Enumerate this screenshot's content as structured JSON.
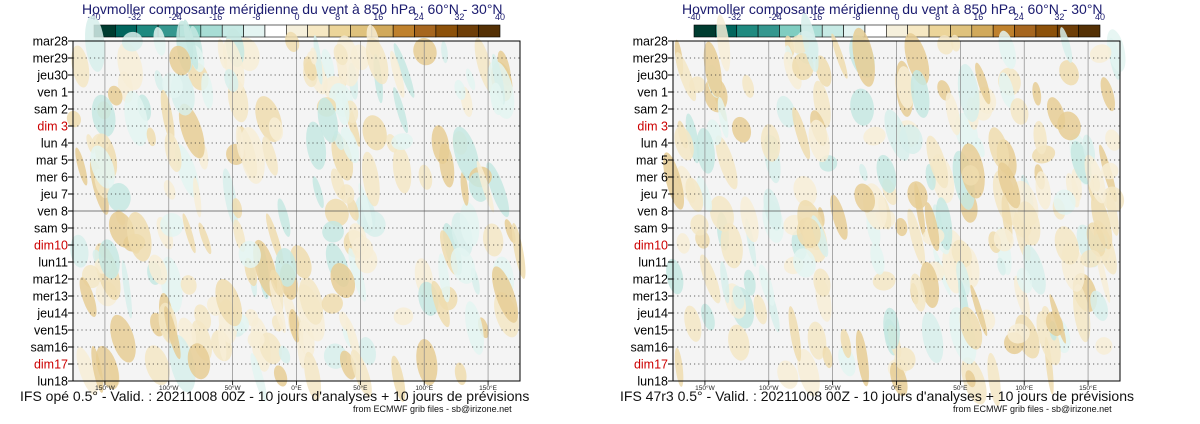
{
  "chart_data": [
    {
      "type": "heatmap",
      "title": "Hovmoller composante méridienne du vent à 850 hPa : 60°N - 30°N",
      "footer": "IFS opé 0.5° - Valid. : 20211008 00Z - 10 jours d'analyses + 10 jours de prévisions",
      "credit": "from ECMWF grib files - sb@irizone.net",
      "colorbar": {
        "ticks": [
          "-40",
          "-32",
          "-24",
          "-16",
          "-8",
          "0",
          "8",
          "16",
          "24",
          "32",
          "40"
        ],
        "colors": [
          "#003c30",
          "#01665e",
          "#1f8a80",
          "#35978f",
          "#80cdc1",
          "#a8ddd5",
          "#c7eae5",
          "#e4f4f2",
          "#ffffff",
          "#f6f0dc",
          "#f6e8c3",
          "#ecd59a",
          "#dfc27d",
          "#d1a95b",
          "#bf812d",
          "#a6661f",
          "#8c510a",
          "#6e3e08",
          "#543005"
        ]
      },
      "x_ticks": [
        "150°W",
        "100°W",
        "50°W",
        "0°E",
        "50°E",
        "100°E",
        "150°E"
      ],
      "y_labels": [
        {
          "text": "mar28",
          "weekend": false
        },
        {
          "text": "mer29",
          "weekend": false
        },
        {
          "text": "jeu30",
          "weekend": false
        },
        {
          "text": "ven 1",
          "weekend": false
        },
        {
          "text": "sam 2",
          "weekend": false
        },
        {
          "text": "dim 3",
          "weekend": true
        },
        {
          "text": "lun 4",
          "weekend": false
        },
        {
          "text": "mar 5",
          "weekend": false
        },
        {
          "text": "mer 6",
          "weekend": false
        },
        {
          "text": "jeu 7",
          "weekend": false
        },
        {
          "text": "ven 8",
          "weekend": false
        },
        {
          "text": "sam 9",
          "weekend": false
        },
        {
          "text": "dim10",
          "weekend": true
        },
        {
          "text": "lun11",
          "weekend": false
        },
        {
          "text": "mar12",
          "weekend": false
        },
        {
          "text": "mer13",
          "weekend": false
        },
        {
          "text": "jeu14",
          "weekend": false
        },
        {
          "text": "ven15",
          "weekend": false
        },
        {
          "text": "sam16",
          "weekend": false
        },
        {
          "text": "dim17",
          "weekend": true
        },
        {
          "text": "lun18",
          "weekend": false
        }
      ],
      "analysis_boundary": "ven 8",
      "colors": {
        "axis": "#000000",
        "weekend": "#cc0000",
        "title": "#1a1a6e"
      }
    },
    {
      "type": "heatmap",
      "title": "Hovmoller composante méridienne du vent à 850 hPa : 60°N - 30°N",
      "footer": "IFS 47r3 0.5° - Valid. : 20211008 00Z - 10 jours d'analyses + 10 jours de prévisions",
      "credit": "from ECMWF grib files - sb@irizone.net",
      "colorbar": {
        "ticks": [
          "-40",
          "-32",
          "-24",
          "-16",
          "-8",
          "0",
          "8",
          "16",
          "24",
          "32",
          "40"
        ],
        "colors": [
          "#003c30",
          "#01665e",
          "#1f8a80",
          "#35978f",
          "#80cdc1",
          "#a8ddd5",
          "#c7eae5",
          "#e4f4f2",
          "#ffffff",
          "#f6f0dc",
          "#f6e8c3",
          "#ecd59a",
          "#dfc27d",
          "#d1a95b",
          "#bf812d",
          "#a6661f",
          "#8c510a",
          "#6e3e08",
          "#543005"
        ]
      },
      "x_ticks": [
        "150°W",
        "100°W",
        "50°W",
        "0°E",
        "50°E",
        "100°E",
        "150°E"
      ],
      "y_labels": [
        {
          "text": "mar28",
          "weekend": false
        },
        {
          "text": "mer29",
          "weekend": false
        },
        {
          "text": "jeu30",
          "weekend": false
        },
        {
          "text": "ven 1",
          "weekend": false
        },
        {
          "text": "sam 2",
          "weekend": false
        },
        {
          "text": "dim 3",
          "weekend": true
        },
        {
          "text": "lun 4",
          "weekend": false
        },
        {
          "text": "mar 5",
          "weekend": false
        },
        {
          "text": "mer 6",
          "weekend": false
        },
        {
          "text": "jeu 7",
          "weekend": false
        },
        {
          "text": "ven 8",
          "weekend": false
        },
        {
          "text": "sam 9",
          "weekend": false
        },
        {
          "text": "dim10",
          "weekend": true
        },
        {
          "text": "lun11",
          "weekend": false
        },
        {
          "text": "mar12",
          "weekend": false
        },
        {
          "text": "mer13",
          "weekend": false
        },
        {
          "text": "jeu14",
          "weekend": false
        },
        {
          "text": "ven15",
          "weekend": false
        },
        {
          "text": "sam16",
          "weekend": false
        },
        {
          "text": "dim17",
          "weekend": true
        },
        {
          "text": "lun18",
          "weekend": false
        }
      ],
      "analysis_boundary": "ven 8",
      "colors": {
        "axis": "#000000",
        "weekend": "#cc0000",
        "title": "#1a1a6e"
      }
    }
  ]
}
